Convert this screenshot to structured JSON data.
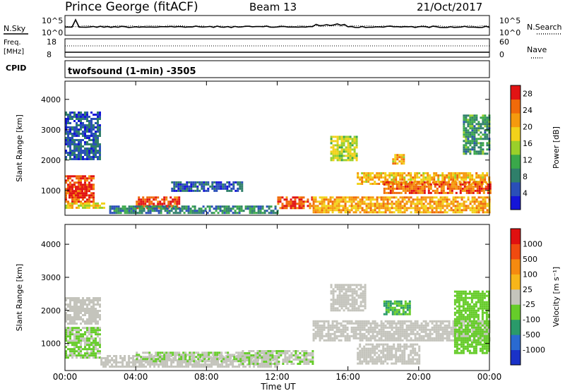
{
  "header": {
    "station": "Prince George (fitACF)",
    "beam": "Beam 13",
    "date": "21/Oct/2017"
  },
  "noise_panel": {
    "left_label": "N.Sky",
    "left_ticks": [
      "10^5",
      "10^0"
    ],
    "right_ticks": [
      "10^5",
      "10^0"
    ],
    "right_label": "N.Search"
  },
  "freq_panel": {
    "left_label_line1": "Freq.",
    "left_label_line2": "[MHz]",
    "left_ticks": [
      "18",
      "8"
    ],
    "right_ticks": [
      "60",
      "0"
    ],
    "right_label": "Nave"
  },
  "cpid_panel": {
    "left_label": "CPID",
    "program": "twofsound (1-min) -3505"
  },
  "time_axis": {
    "ticks": [
      "00:00",
      "04:00",
      "08:00",
      "12:00",
      "16:00",
      "20:00",
      "00:00"
    ],
    "label": "Time UT"
  },
  "colors": {
    "power_scale": [
      "#1515d8",
      "#2a4fb8",
      "#2f7f6a",
      "#3aa84a",
      "#9ad02a",
      "#f2d21a",
      "#f59a0e",
      "#f06a0a",
      "#e21414"
    ],
    "velocity_scale": [
      "#1a32c8",
      "#2a6ad0",
      "#2a9a6a",
      "#66cc2a",
      "#c4c4bc",
      "#f7b61a",
      "#f58a10",
      "#f04a10",
      "#e01010"
    ],
    "ground_scatter": "#c4c4bc"
  },
  "chart_data": [
    {
      "type": "heatmap",
      "title": "",
      "xlabel": "Time UT",
      "ylabel": "Slant Range [km]",
      "x_ticks": [
        "00:00",
        "04:00",
        "08:00",
        "12:00",
        "16:00",
        "20:00",
        "00:00"
      ],
      "y_ticks": [
        "1000",
        "2000",
        "3000",
        "4000"
      ],
      "ylim": [
        180,
        4600
      ],
      "colorbar": {
        "label": "Power [dB]",
        "ticks": [
          "4",
          "8",
          "12",
          "16",
          "20",
          "24",
          "28"
        ],
        "range": [
          0,
          30
        ]
      },
      "regions": [
        {
          "t": [
            0.0,
            1.6
          ],
          "r": [
            600,
            1500
          ],
          "value": 26
        },
        {
          "t": [
            0.2,
            1.2
          ],
          "r": [
            750,
            1150
          ],
          "value": 29
        },
        {
          "t": [
            0.0,
            2.2
          ],
          "r": [
            450,
            600
          ],
          "value": 18
        },
        {
          "t": [
            0.0,
            2.0
          ],
          "r": [
            2000,
            3600
          ],
          "value": 6
        },
        {
          "t": [
            4.0,
            6.5
          ],
          "r": [
            450,
            800
          ],
          "value": 27
        },
        {
          "t": [
            6.0,
            10.0
          ],
          "r": [
            1000,
            1300
          ],
          "value": 6
        },
        {
          "t": [
            2.5,
            12.0
          ],
          "r": [
            250,
            500
          ],
          "value": 8
        },
        {
          "t": [
            12.0,
            14.0
          ],
          "r": [
            400,
            800
          ],
          "value": 26
        },
        {
          "t": [
            15.0,
            16.5
          ],
          "r": [
            2000,
            2800
          ],
          "value": 16
        },
        {
          "t": [
            16.5,
            24.0
          ],
          "r": [
            1200,
            1600
          ],
          "value": 20
        },
        {
          "t": [
            18.0,
            24.0
          ],
          "r": [
            900,
            1300
          ],
          "value": 25
        },
        {
          "t": [
            14.0,
            24.0
          ],
          "r": [
            300,
            800
          ],
          "value": 21
        },
        {
          "t": [
            18.5,
            19.2
          ],
          "r": [
            1900,
            2200
          ],
          "value": 20
        },
        {
          "t": [
            22.5,
            24.0
          ],
          "r": [
            2200,
            3500
          ],
          "value": 10
        }
      ]
    },
    {
      "type": "heatmap",
      "title": "",
      "xlabel": "Time UT",
      "ylabel": "Slant Range [km]",
      "x_ticks": [
        "00:00",
        "04:00",
        "08:00",
        "12:00",
        "16:00",
        "20:00",
        "00:00"
      ],
      "y_ticks": [
        "1000",
        "2000",
        "3000",
        "4000"
      ],
      "ylim": [
        180,
        4600
      ],
      "colorbar": {
        "label": "Velocity [m s⁻¹]",
        "ticks": [
          "1000",
          "500",
          "100",
          "25",
          "-25",
          "-100",
          "-500",
          "-1000"
        ],
        "range": [
          -1200,
          1200
        ]
      },
      "regions": [
        {
          "t": [
            0.0,
            2.0
          ],
          "r": [
            600,
            1500
          ],
          "value": -150
        },
        {
          "t": [
            0.0,
            2.0
          ],
          "r": [
            1600,
            2400
          ],
          "value": 0
        },
        {
          "t": [
            2.0,
            12.0
          ],
          "r": [
            300,
            650
          ],
          "value": 0
        },
        {
          "t": [
            4.0,
            10.0
          ],
          "r": [
            450,
            750
          ],
          "value": -120
        },
        {
          "t": [
            10.0,
            14.0
          ],
          "r": [
            400,
            800
          ],
          "value": -120
        },
        {
          "t": [
            14.0,
            24.0
          ],
          "r": [
            1100,
            1700
          ],
          "value": 0
        },
        {
          "t": [
            15.0,
            17.0
          ],
          "r": [
            2000,
            2800
          ],
          "value": 60
        },
        {
          "t": [
            18.0,
            19.5
          ],
          "r": [
            1900,
            2300
          ],
          "value": -400
        },
        {
          "t": [
            16.5,
            20.0
          ],
          "r": [
            400,
            1000
          ],
          "value": 80
        },
        {
          "t": [
            22.0,
            24.0
          ],
          "r": [
            700,
            2600
          ],
          "value": -300
        }
      ]
    }
  ]
}
